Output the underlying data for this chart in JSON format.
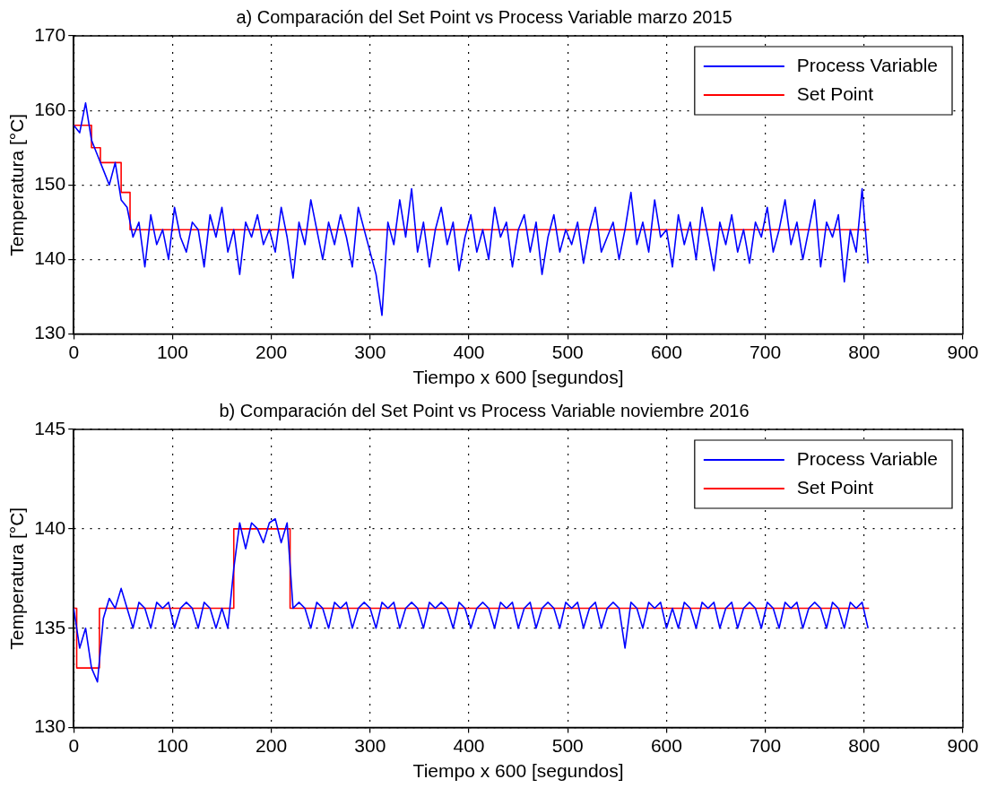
{
  "chart_data": [
    {
      "type": "line",
      "title": "a) Comparación del Set Point vs Process Variable marzo 2015",
      "xlabel": "Tiempo x 600 [segundos]",
      "ylabel": "Temperatura [°C]",
      "xlim": [
        0,
        900
      ],
      "xticks": [
        0,
        100,
        200,
        300,
        400,
        500,
        600,
        700,
        800,
        900
      ],
      "ylim": [
        130,
        170
      ],
      "yticks": [
        130,
        140,
        150,
        160,
        170
      ],
      "grid": true,
      "legend": "top right",
      "marker": "none",
      "line_style": "solid",
      "series": [
        {
          "name": "Process Variable",
          "color": "#0000ff",
          "x": [
            0,
            6,
            12,
            18,
            24,
            30,
            36,
            42,
            48,
            54,
            60,
            66,
            72,
            78,
            84,
            90,
            96,
            102,
            108,
            114,
            120,
            126,
            132,
            138,
            144,
            150,
            156,
            162,
            168,
            174,
            180,
            186,
            192,
            198,
            204,
            210,
            216,
            222,
            228,
            234,
            240,
            246,
            252,
            258,
            264,
            270,
            276,
            282,
            288,
            294,
            300,
            306,
            312,
            318,
            324,
            330,
            336,
            342,
            348,
            354,
            360,
            366,
            372,
            378,
            384,
            390,
            396,
            402,
            408,
            414,
            420,
            426,
            432,
            438,
            444,
            450,
            456,
            462,
            468,
            474,
            480,
            486,
            492,
            498,
            504,
            510,
            516,
            522,
            528,
            534,
            540,
            546,
            552,
            558,
            564,
            570,
            576,
            582,
            588,
            594,
            600,
            606,
            612,
            618,
            624,
            630,
            636,
            642,
            648,
            654,
            660,
            666,
            672,
            678,
            684,
            690,
            696,
            702,
            708,
            714,
            720,
            726,
            732,
            738,
            744,
            750,
            756,
            762,
            768,
            774,
            780,
            786,
            792,
            798,
            804
          ],
          "values": [
            158,
            157,
            161,
            156,
            154,
            152,
            150,
            153,
            148,
            147,
            143,
            145,
            139,
            146,
            142,
            144,
            140,
            147,
            143,
            141,
            145,
            144,
            139,
            146,
            143,
            147,
            141,
            144,
            138,
            145,
            143,
            146,
            142,
            144,
            141,
            147,
            143,
            137.5,
            145,
            142,
            148,
            144,
            140,
            145,
            142,
            146,
            143,
            139,
            147,
            144,
            141,
            138,
            132.5,
            145,
            142,
            148,
            143,
            149.5,
            141,
            145,
            139,
            144,
            147,
            142,
            145,
            138.5,
            143,
            146,
            141,
            144,
            140,
            147,
            143,
            145,
            139,
            144,
            146,
            141,
            145,
            138,
            143,
            146,
            141,
            144,
            142,
            145,
            139.5,
            144,
            147,
            141,
            143,
            145,
            140,
            144,
            149,
            142,
            145,
            141,
            148,
            143,
            144,
            139,
            146,
            142,
            145,
            140,
            147,
            143,
            138.5,
            145,
            142,
            146,
            141,
            144,
            139.5,
            145,
            143,
            147,
            141,
            144,
            148,
            142,
            145,
            140,
            144,
            148,
            139,
            145,
            143,
            146,
            137,
            144,
            141,
            149.5,
            139.5
          ]
        },
        {
          "name": "Set Point",
          "type": "step",
          "color": "#ff0000",
          "x": [
            0,
            18,
            27,
            48,
            57,
            805
          ],
          "values": [
            158,
            155,
            153,
            149,
            144,
            144
          ]
        }
      ]
    },
    {
      "type": "line",
      "title": "b) Comparación del Set Point vs Process Variable noviembre 2016",
      "xlabel": "Tiempo x 600 [segundos]",
      "ylabel": "Temperatura [°C]",
      "xlim": [
        0,
        900
      ],
      "xticks": [
        0,
        100,
        200,
        300,
        400,
        500,
        600,
        700,
        800,
        900
      ],
      "ylim": [
        130,
        145
      ],
      "yticks": [
        130,
        135,
        140,
        145
      ],
      "grid": true,
      "legend": "top right",
      "marker": "none",
      "line_style": "solid",
      "series": [
        {
          "name": "Process Variable",
          "color": "#0000ff",
          "x": [
            0,
            6,
            12,
            18,
            24,
            30,
            36,
            42,
            48,
            54,
            60,
            66,
            72,
            78,
            84,
            90,
            96,
            102,
            108,
            114,
            120,
            126,
            132,
            138,
            144,
            150,
            156,
            162,
            168,
            174,
            180,
            186,
            192,
            198,
            204,
            210,
            216,
            222,
            228,
            234,
            240,
            246,
            252,
            258,
            264,
            270,
            276,
            282,
            288,
            294,
            300,
            306,
            312,
            318,
            324,
            330,
            336,
            342,
            348,
            354,
            360,
            366,
            372,
            378,
            384,
            390,
            396,
            402,
            408,
            414,
            420,
            426,
            432,
            438,
            444,
            450,
            456,
            462,
            468,
            474,
            480,
            486,
            492,
            498,
            504,
            510,
            516,
            522,
            528,
            534,
            540,
            546,
            552,
            558,
            564,
            570,
            576,
            582,
            588,
            594,
            600,
            606,
            612,
            618,
            624,
            630,
            636,
            642,
            648,
            654,
            660,
            666,
            672,
            678,
            684,
            690,
            696,
            702,
            708,
            714,
            720,
            726,
            732,
            738,
            744,
            750,
            756,
            762,
            768,
            774,
            780,
            786,
            792,
            798,
            804
          ],
          "values": [
            136,
            134,
            135,
            133,
            132.3,
            135.5,
            136.5,
            136,
            137,
            136,
            135,
            136.3,
            136,
            135,
            136.3,
            136,
            136.3,
            135,
            136,
            136.3,
            136,
            135,
            136.3,
            136,
            135,
            136,
            135,
            138,
            140.3,
            139,
            140.3,
            140,
            139.3,
            140.3,
            140.5,
            139.3,
            140.3,
            136,
            136.3,
            136,
            135,
            136.3,
            136,
            135,
            136.3,
            136,
            136.3,
            135,
            136,
            136.3,
            136,
            135,
            136.3,
            136,
            136.3,
            135,
            136,
            136.3,
            136,
            135,
            136.3,
            136,
            136.3,
            136,
            135,
            136.3,
            136,
            135,
            136,
            136.3,
            136,
            135,
            136.3,
            136,
            136.3,
            135,
            136,
            136.3,
            135,
            136,
            136.3,
            136,
            135,
            136.3,
            136,
            136.3,
            135,
            136,
            136.3,
            135,
            136,
            136.3,
            136,
            134,
            136.3,
            136,
            135,
            136.3,
            136,
            136.3,
            135,
            136,
            135,
            136.3,
            136,
            135,
            136.3,
            136,
            136.3,
            135,
            136,
            136.3,
            135,
            136,
            136.3,
            136,
            135,
            136.3,
            136,
            135,
            136.3,
            136,
            136.3,
            135,
            136,
            136.3,
            136,
            135,
            136.3,
            136,
            135,
            136.3,
            136,
            136.3,
            135
          ]
        },
        {
          "name": "Set Point",
          "type": "step",
          "color": "#ff0000",
          "x": [
            0,
            3,
            26,
            162,
            219,
            805
          ],
          "values": [
            136,
            133,
            136,
            140,
            136,
            136
          ]
        }
      ]
    }
  ]
}
